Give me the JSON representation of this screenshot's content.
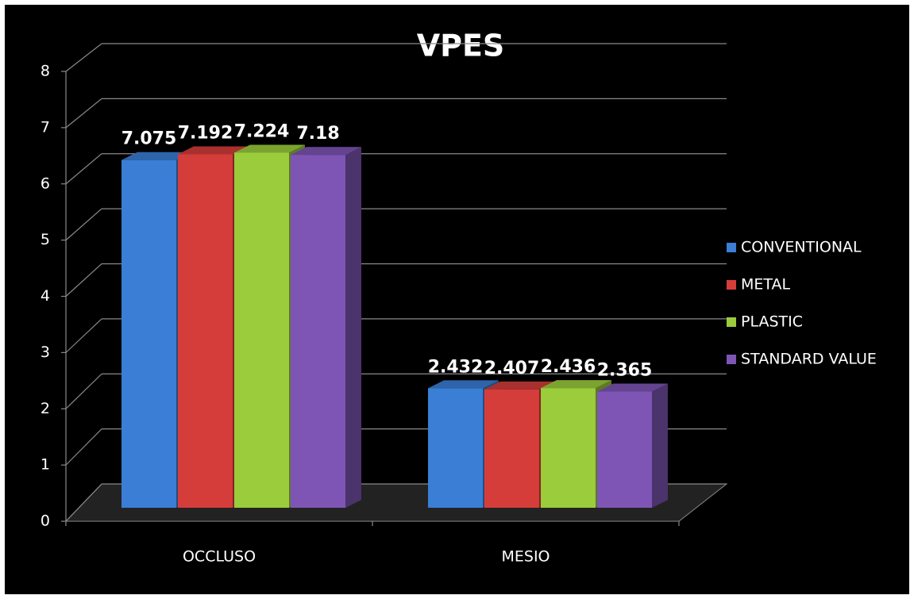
{
  "chart_data": {
    "type": "bar3d",
    "title": "VPES",
    "categories": [
      "OCCLUSO",
      "MESIO"
    ],
    "series": [
      {
        "name": "CONVENTIONAL",
        "color": "#3a7fd5",
        "values": [
          7.075,
          2.432
        ]
      },
      {
        "name": "METAL",
        "color": "#d43d3a",
        "values": [
          7.192,
          2.407
        ]
      },
      {
        "name": "PLASTIC",
        "color": "#9bcc3c",
        "values": [
          7.224,
          2.436
        ]
      },
      {
        "name": "STANDARD VALUE",
        "color": "#7e55b5",
        "values": [
          7.18,
          2.365
        ]
      }
    ],
    "ylim": [
      0,
      8
    ],
    "yticks": [
      0,
      1,
      2,
      3,
      4,
      5,
      6,
      7,
      8
    ],
    "grid": true,
    "legend": "right"
  }
}
